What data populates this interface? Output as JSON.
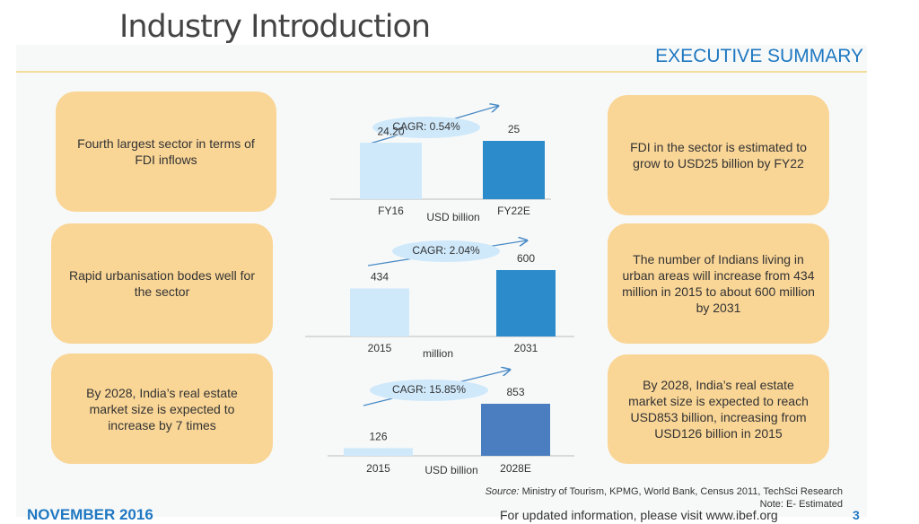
{
  "title": "Industry Introduction",
  "header": "EXECUTIVE SUMMARY",
  "left_boxes": [
    "Fourth largest sector in terms of FDI inflows",
    "Rapid urbanisation bodes well for the sector",
    "By 2028, India’s real estate market size is expected to increase by 7 times"
  ],
  "right_boxes": [
    "FDI in the sector is estimated to grow to USD25 billion by FY22",
    "The number of Indians living in urban areas will increase from 434 million in 2015 to about 600 million by 2031",
    "By 2028, India’s real estate market size is expected to reach USD853 billion, increasing from USD126 billion in 2015"
  ],
  "chart_data": [
    {
      "type": "bar",
      "cagr": "CAGR: 0.54%",
      "unit": "USD billion",
      "categories": [
        "FY16",
        "FY22E"
      ],
      "values": [
        24.2,
        25
      ],
      "value_labels": [
        "24.20",
        "25"
      ],
      "colors": [
        "#cfe9fb",
        "#2b8bcb"
      ]
    },
    {
      "type": "bar",
      "cagr": "CAGR: 2.04%",
      "unit": "million",
      "categories": [
        "2015",
        "2031"
      ],
      "values": [
        434,
        600
      ],
      "colors": [
        "#cfe9fb",
        "#2b8bcb"
      ]
    },
    {
      "type": "bar",
      "cagr": "CAGR: 15.85%",
      "unit": "USD billion",
      "categories": [
        "2015",
        "2028E"
      ],
      "values": [
        126,
        853
      ],
      "colors": [
        "#cfe9fb",
        "#4a7ec0"
      ]
    }
  ],
  "source_label": "Source:",
  "source": "Ministry of Tourism, KPMG, World Bank, Census 2011, TechSci Research",
  "note": "Note: E- Estimated",
  "footer_left": "NOVEMBER 2016",
  "footer_right": "For updated information, please visit www.ibef.org",
  "page_number": "3"
}
